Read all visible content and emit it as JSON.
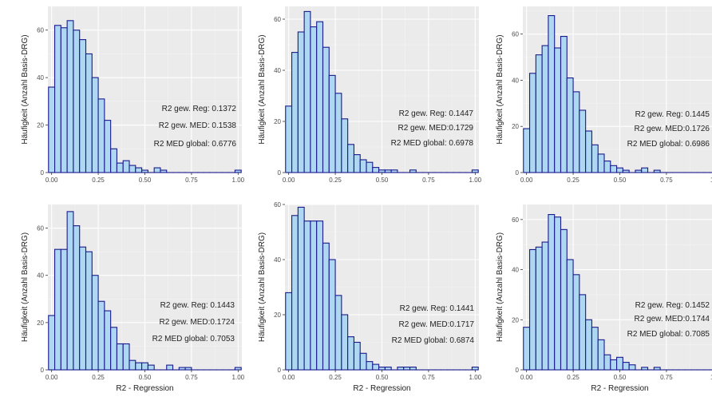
{
  "chart_data": [
    {
      "type": "bar",
      "ylabel": "Häufigkeit (Anzahl Basis-DRG)",
      "xlabel": "",
      "xlim": [
        -0.02,
        1.02
      ],
      "ylim": [
        0,
        70
      ],
      "x_ticks": [
        "0.00",
        "0.25",
        "0.50",
        "0.75",
        "1.00"
      ],
      "y_ticks": [
        "0",
        "20",
        "40",
        "60"
      ],
      "bin_width": 0.03333,
      "bin_starts_at": -0.0167,
      "values": [
        36,
        62,
        61,
        64,
        60,
        56,
        50,
        40,
        31,
        22,
        10,
        4,
        5,
        3,
        2,
        1,
        0,
        2,
        1,
        0,
        0,
        0,
        0,
        0,
        0,
        0,
        0,
        0,
        0,
        0,
        1
      ],
      "annotations": [
        "R2 gew. Reg: 0.1372",
        "R2 gew. MED: 0.1538",
        "R2 MED global: 0.6776"
      ]
    },
    {
      "type": "bar",
      "ylabel": "Häufigkeit (Anzahl Basis-DRG)",
      "xlabel": "",
      "xlim": [
        -0.02,
        1.02
      ],
      "ylim": [
        0,
        65
      ],
      "x_ticks": [
        "0.00",
        "0.25",
        "0.50",
        "0.75",
        "1.00"
      ],
      "y_ticks": [
        "0",
        "20",
        "40",
        "60"
      ],
      "bin_width": 0.03333,
      "bin_starts_at": -0.0167,
      "values": [
        26,
        47,
        55,
        63,
        57,
        59,
        49,
        38,
        31,
        21,
        11,
        7,
        5,
        4,
        2,
        1,
        1,
        1,
        0,
        0,
        1,
        0,
        0,
        0,
        0,
        0,
        0,
        0,
        0,
        0,
        1
      ],
      "annotations": [
        "R2 gew. Reg: 0.1447",
        "R2 gew. MED:0.1729",
        "R2 MED global: 0.6978"
      ]
    },
    {
      "type": "bar",
      "ylabel": "Häufigkeit (Anzahl Basis-DRG)",
      "xlabel": "",
      "xlim": [
        -0.02,
        1.02
      ],
      "ylim": [
        0,
        72
      ],
      "x_ticks": [
        "0.00",
        "0.25",
        "0.50",
        "0.75",
        "1."
      ],
      "y_ticks": [
        "0",
        "20",
        "40",
        "60"
      ],
      "bin_width": 0.03333,
      "bin_starts_at": -0.0167,
      "values": [
        19,
        43,
        51,
        55,
        68,
        54,
        59,
        41,
        35,
        27,
        18,
        12,
        8,
        5,
        3,
        2,
        1,
        0,
        1,
        2,
        0,
        1,
        0,
        0,
        0,
        0,
        0,
        0,
        0,
        0,
        0
      ],
      "annotations": [
        "R2 gew. Reg: 0.1445",
        "R2 gew. MED:0.1726",
        "R2 MED global: 0.6986"
      ]
    },
    {
      "type": "bar",
      "ylabel": "Häufigkeit (Anzahl Basis-DRG)",
      "xlabel": "R2 - Regression",
      "xlim": [
        -0.02,
        1.02
      ],
      "ylim": [
        0,
        70
      ],
      "x_ticks": [
        "0.00",
        "0.25",
        "0.50",
        "0.75",
        "1.00"
      ],
      "y_ticks": [
        "0",
        "20",
        "40",
        "60"
      ],
      "bin_width": 0.03333,
      "bin_starts_at": -0.0167,
      "values": [
        23,
        51,
        51,
        67,
        61,
        52,
        50,
        40,
        29,
        25,
        18,
        11,
        11,
        4,
        3,
        3,
        2,
        0,
        0,
        2,
        0,
        1,
        1,
        0,
        0,
        0,
        0,
        0,
        0,
        0,
        1
      ],
      "annotations": [
        "R2 gew. Reg: 0.1443",
        "R2 gew. MED:0.1724",
        "R2 MED global: 0.7053"
      ]
    },
    {
      "type": "bar",
      "ylabel": "Häufigkeit (Anzahl Basis-DRG)",
      "xlabel": "R2 - Regression",
      "xlim": [
        -0.02,
        1.02
      ],
      "ylim": [
        0,
        60
      ],
      "x_ticks": [
        "0.00",
        "0.25",
        "0.50",
        "0.75",
        "1.00"
      ],
      "y_ticks": [
        "0",
        "20",
        "40",
        "60"
      ],
      "bin_width": 0.03333,
      "bin_starts_at": -0.0167,
      "values": [
        28,
        56,
        59,
        54,
        54,
        54,
        46,
        40,
        27,
        20,
        12,
        10,
        6,
        3,
        2,
        1,
        1,
        0,
        1,
        1,
        1,
        0,
        0,
        0,
        0,
        0,
        0,
        0,
        0,
        0,
        1
      ],
      "annotations": [
        "R2 gew. Reg: 0.1441",
        "R2 gew. MED:0.1717",
        "R2 MED global: 0.6874"
      ]
    },
    {
      "type": "bar",
      "ylabel": "Häufigkeit (Anzahl Basis-DRG)",
      "xlabel": "R2 - Regression",
      "xlim": [
        -0.02,
        1.02
      ],
      "ylim": [
        0,
        66
      ],
      "x_ticks": [
        "0.00",
        "0.25",
        "0.50",
        "0.75",
        "1."
      ],
      "y_ticks": [
        "0",
        "20",
        "40",
        "60"
      ],
      "bin_width": 0.03333,
      "bin_starts_at": -0.0167,
      "values": [
        17,
        48,
        49,
        51,
        62,
        61,
        56,
        44,
        38,
        30,
        20,
        17,
        12,
        6,
        4,
        5,
        3,
        2,
        0,
        1,
        0,
        1,
        0,
        0,
        0,
        0,
        0,
        0,
        0,
        0,
        0
      ],
      "annotations": [
        "R2 gew. Reg: 0.1452",
        "R2 gew. MED:0.1744",
        "R2 MED global: 0.7085"
      ]
    }
  ],
  "colors": {
    "panel_bg": "#ebebeb",
    "grid_major": "#ffffff",
    "grid_minor": "#f4f4f4",
    "bar_fill": "#aed8f2",
    "bar_stroke": "#1a1a8c",
    "tick_text": "#4d4d4d"
  }
}
